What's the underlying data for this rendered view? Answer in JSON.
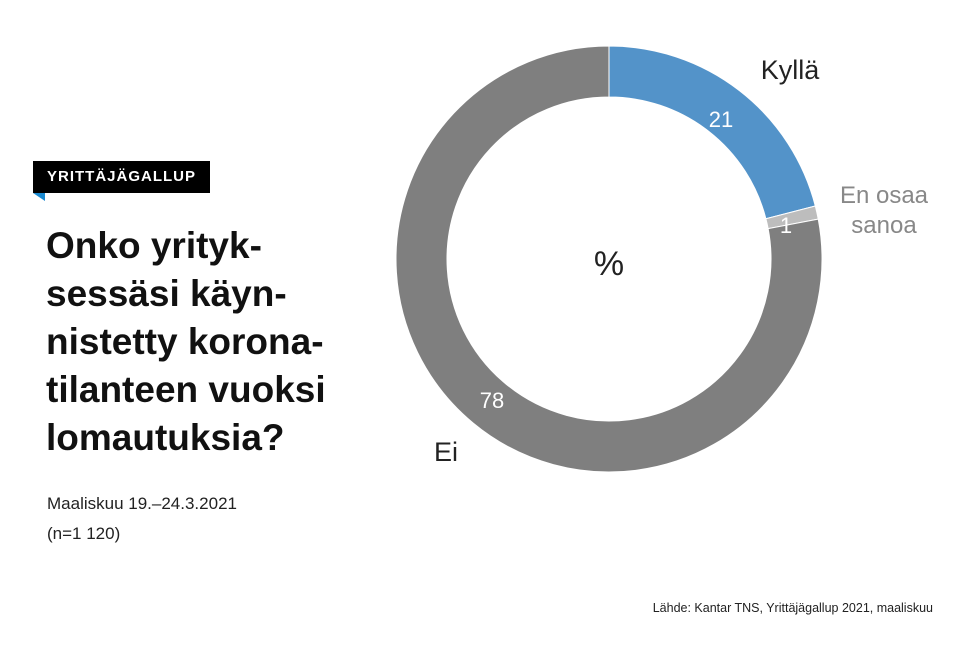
{
  "badge": "YRITTÄJÄGALLUP",
  "headline_lines": [
    "Onko yrityk-",
    "sessäsi käyn-",
    "nistetty korona-",
    "tilanteen vuoksi",
    "lomautuksia?"
  ],
  "subtitle_lines": [
    "Maaliskuu 19.–24.3.2021",
    "(n=1 120)"
  ],
  "source": "Lähde: Kantar TNS, Yrittäjägallup 2021, maaliskuu",
  "chart_data": {
    "type": "pie",
    "center_label": "%",
    "slices": [
      {
        "name": "Kyllä",
        "value": 21,
        "color": "#5393c9",
        "label_color": "#ffffff",
        "legend_color": "#222222"
      },
      {
        "name": "En osaa sanoa",
        "name_lines": [
          "En osaa",
          "sanoa"
        ],
        "value": 1,
        "color": "#bdbdbd",
        "label_color": "#ffffff",
        "legend_color": "#888888"
      },
      {
        "name": "Ei",
        "value": 78,
        "color": "#7f7f7f",
        "label_color": "#ffffff",
        "legend_color": "#222222"
      }
    ]
  }
}
